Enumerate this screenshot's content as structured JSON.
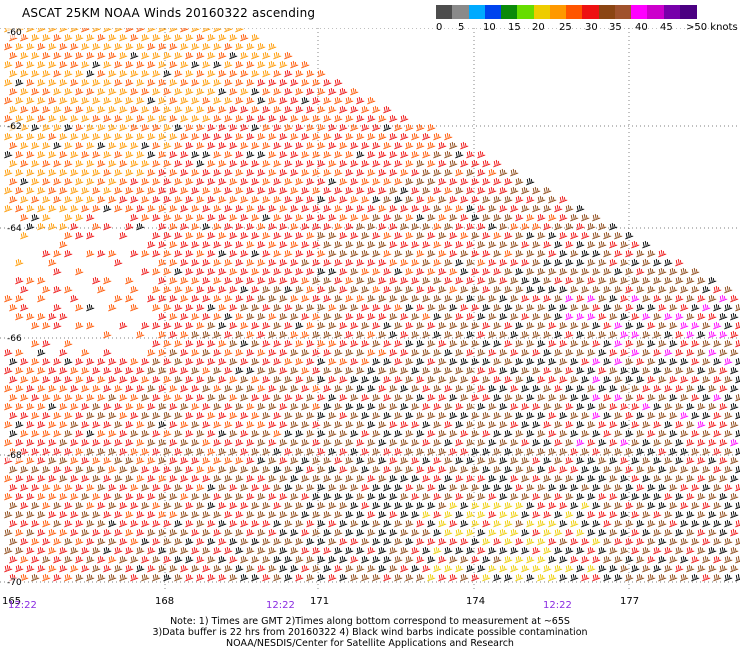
{
  "title": "ASCAT 25KM NOAA Winds 20160322 ascending",
  "scale": {
    "colors": [
      "#4d4d4d",
      "#8a8a8a",
      "#00aaff",
      "#0044ee",
      "#0a8a0a",
      "#66dd00",
      "#eecc00",
      "#ff9900",
      "#ff5500",
      "#ee1111",
      "#8b4513",
      "#a0522d",
      "#ff00ff",
      "#cc00cc",
      "#7700aa",
      "#4b0082"
    ],
    "labels": [
      "0",
      "5",
      "10",
      "15",
      "20",
      "25",
      "30",
      "35",
      "40",
      "45",
      ">50 knots"
    ]
  },
  "latitudes": [
    "-60",
    "-62",
    "-64",
    "-66",
    "-68",
    "-70"
  ],
  "longitudes": [
    "165",
    "168",
    "171",
    "174",
    "177"
  ],
  "times": [
    "12:22",
    "12:22",
    "12:22"
  ],
  "notes": [
    "Note: 1) Times are GMT 2)Times along bottom correspond to measurement at ~65S",
    "3)Data buffer is 22 hrs from 20160322 4) Black wind barbs indicate possible contamination",
    "NOAA/NESDIS/Center for Satellite Applications and Research"
  ],
  "barb_colors": {
    "light": "#ff9900",
    "moderate": "#ff5500",
    "strong": "#ee1111",
    "very_strong": "#8b4513",
    "storm": "#ff00ff",
    "contaminated": "#000000",
    "weak": "#eecc00"
  }
}
